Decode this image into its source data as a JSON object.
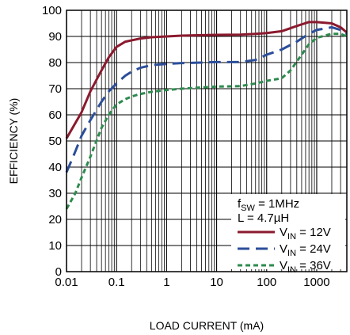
{
  "chart_data": {
    "type": "line",
    "title": "",
    "xlabel": "LOAD CURRENT (mA)",
    "ylabel": "EFFICIENCY (%)",
    "x_scale": "log",
    "xlim": [
      0.01,
      4000
    ],
    "ylim": [
      0,
      100
    ],
    "x_ticks": [
      0.01,
      0.1,
      1,
      10,
      100,
      1000
    ],
    "x_tick_labels": [
      "0.01",
      "0.1",
      "1",
      "10",
      "100",
      "1000"
    ],
    "y_ticks": [
      0,
      10,
      20,
      30,
      40,
      50,
      60,
      70,
      80,
      90,
      100
    ],
    "y_tick_labels": [
      "0",
      "10",
      "20",
      "30",
      "40",
      "50",
      "60",
      "70",
      "80",
      "90",
      "100"
    ],
    "grid": true,
    "legend_placement": "bottom-right",
    "annotations": [
      {
        "main": "f",
        "sub": "SW",
        "tail": " = 1MHz"
      },
      {
        "main": "L = 4.7µH",
        "sub": "",
        "tail": ""
      }
    ],
    "series": [
      {
        "legend_main": "V",
        "legend_sub": "IN",
        "legend_tail": " = 12V",
        "color": "#8b1a2e",
        "dash": "solid",
        "x": [
          0.01,
          0.02,
          0.03,
          0.05,
          0.07,
          0.1,
          0.15,
          0.2,
          0.3,
          0.5,
          1,
          2,
          5,
          10,
          30,
          60,
          100,
          200,
          400,
          700,
          1000,
          2000,
          3000,
          4000
        ],
        "y": [
          51,
          61,
          69,
          77,
          82,
          86,
          88,
          88.5,
          89.2,
          89.7,
          90,
          90.3,
          90.5,
          90.6,
          90.7,
          91,
          91.3,
          92,
          94,
          95.5,
          95.5,
          95,
          93.5,
          91.5
        ]
      },
      {
        "legend_main": "V",
        "legend_sub": "IN",
        "legend_tail": " = 24V",
        "color": "#2c4e9a",
        "dash": "long-dash",
        "x": [
          0.01,
          0.015,
          0.02,
          0.03,
          0.05,
          0.07,
          0.1,
          0.15,
          0.2,
          0.3,
          0.5,
          1,
          2,
          5,
          10,
          30,
          60,
          100,
          200,
          400,
          700,
          1000,
          2000,
          3000,
          4000
        ],
        "y": [
          38,
          46,
          52,
          58,
          65,
          69,
          72,
          75,
          76.5,
          78,
          79,
          79.5,
          79.8,
          80,
          80.2,
          80.2,
          81,
          83,
          85,
          88,
          91,
          92.5,
          93.5,
          92.5,
          91
        ]
      },
      {
        "legend_main": "V",
        "legend_sub": "IN",
        "legend_tail": " = 36V",
        "color": "#2e8b4e",
        "dash": "short-dash",
        "x": [
          0.01,
          0.015,
          0.02,
          0.03,
          0.05,
          0.07,
          0.1,
          0.15,
          0.2,
          0.3,
          0.5,
          1,
          2,
          5,
          10,
          30,
          60,
          100,
          200,
          300,
          500,
          700,
          1000,
          2000,
          3000,
          4000
        ],
        "y": [
          24,
          30,
          36,
          44,
          55,
          60,
          64,
          66,
          67,
          68,
          68.8,
          69.5,
          70,
          70.5,
          70.8,
          71,
          72,
          73,
          74,
          77,
          83,
          87,
          89.5,
          91,
          91,
          90
        ]
      }
    ]
  }
}
